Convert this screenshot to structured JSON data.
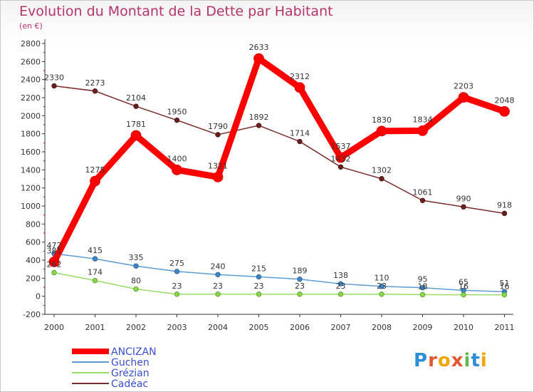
{
  "header": {
    "title": "Evolution du Montant de la Dette par Habitant",
    "subtitle": "(en €)"
  },
  "logo": {
    "text": "Proxiti"
  },
  "chart_data": {
    "type": "line",
    "title": "Evolution du Montant de la Dette par Habitant",
    "subtitle": "(en €)",
    "xlabel": "",
    "ylabel": "",
    "x": [
      "2000",
      "2001",
      "2002",
      "2003",
      "2004",
      "2005",
      "2006",
      "2007",
      "2008",
      "2009",
      "2010",
      "2011"
    ],
    "ylim": [
      -200,
      2800
    ],
    "yticks": [
      -200,
      0,
      200,
      400,
      600,
      800,
      1000,
      1200,
      1400,
      1600,
      1800,
      2000,
      2200,
      2400,
      2600,
      2800
    ],
    "grid": false,
    "legend": "bottom-left",
    "series": [
      {
        "name": "ANCIZAN",
        "color": "#ff0000",
        "values": [
          381,
          1275,
          1781,
          1400,
          1321,
          2633,
          2312,
          1537,
          1830,
          1834,
          2203,
          2048
        ]
      },
      {
        "name": "Guchen",
        "color": "#5b9bd5",
        "values": [
          472,
          415,
          335,
          275,
          240,
          215,
          189,
          138,
          110,
          95,
          65,
          51
        ]
      },
      {
        "name": "Grézian",
        "color": "#99dd66",
        "values": [
          262,
          174,
          80,
          23,
          23,
          23,
          23,
          23,
          23,
          18,
          16,
          16
        ]
      },
      {
        "name": "Cadéac",
        "color": "#7a2b2b",
        "values": [
          2330,
          2273,
          2104,
          1950,
          1790,
          1892,
          1714,
          1432,
          1302,
          1061,
          990,
          918
        ]
      }
    ]
  }
}
